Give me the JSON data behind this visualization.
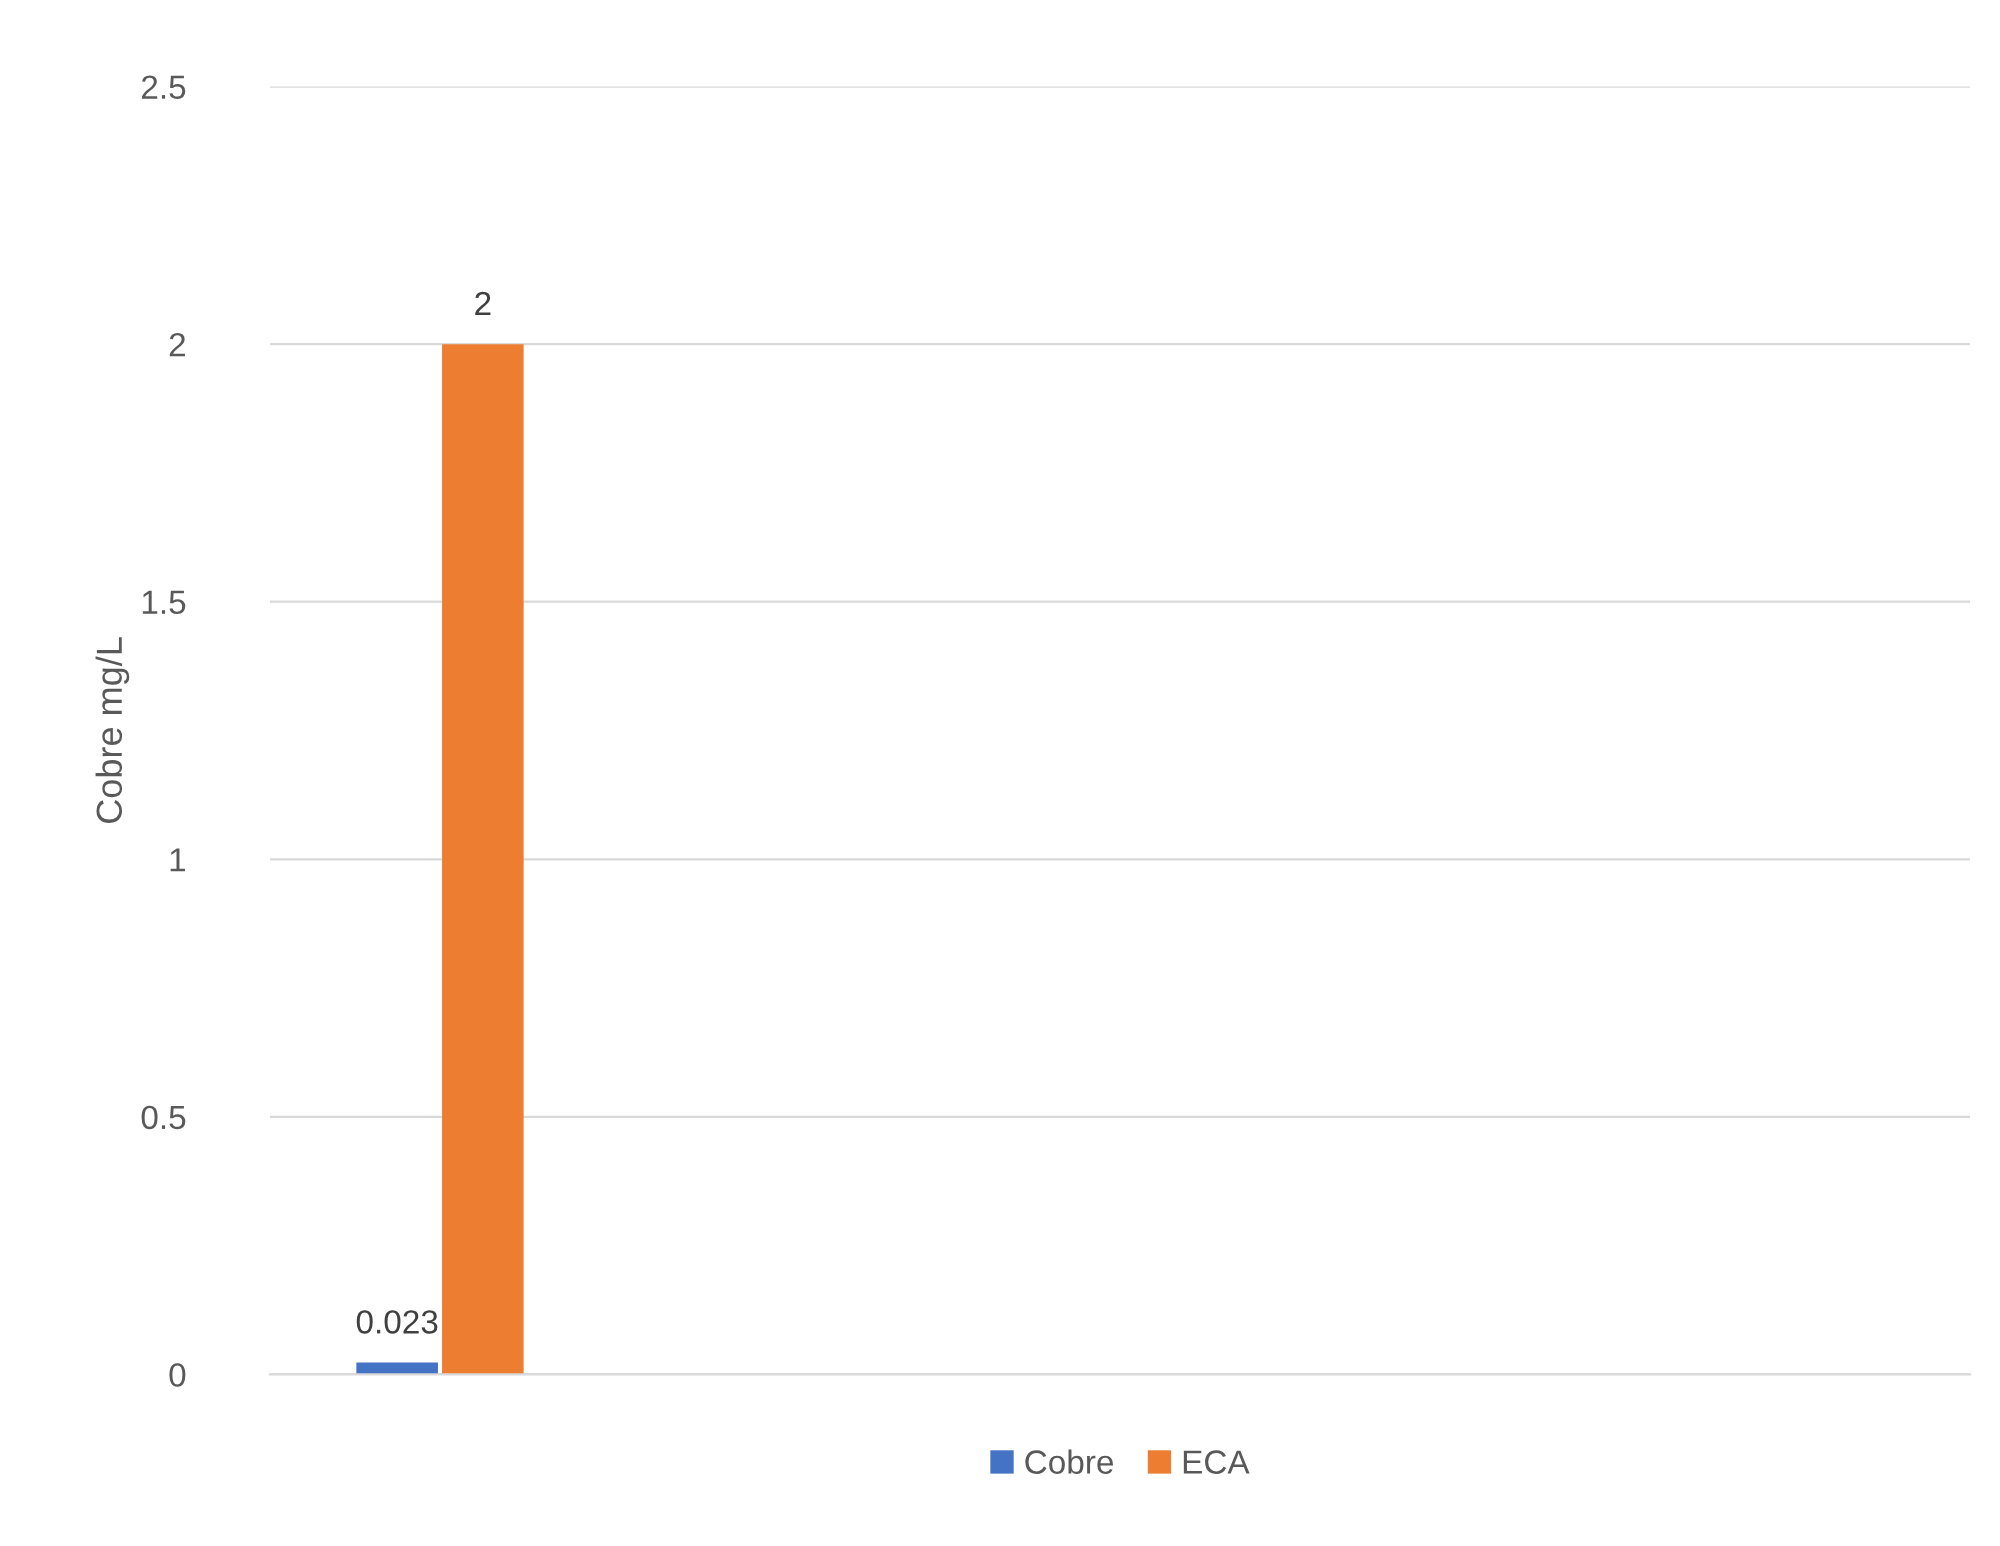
{
  "chart_data": {
    "type": "bar",
    "ylabel": "Cobre mg/L",
    "categories": [
      null,
      null,
      null,
      null,
      null
    ],
    "series": [
      {
        "name": "Cobre",
        "color": "#4472c4",
        "values": [
          0.023,
          null,
          null,
          null,
          null
        ]
      },
      {
        "name": "ECA",
        "color": "#ed7d31",
        "values": [
          2,
          null,
          null,
          null,
          null
        ]
      }
    ],
    "ylim": [
      0,
      2.5
    ],
    "yticks": [
      0,
      0.5,
      1,
      1.5,
      2,
      2.5
    ],
    "grid": "y",
    "legend": "bottom",
    "data_labels": true
  }
}
